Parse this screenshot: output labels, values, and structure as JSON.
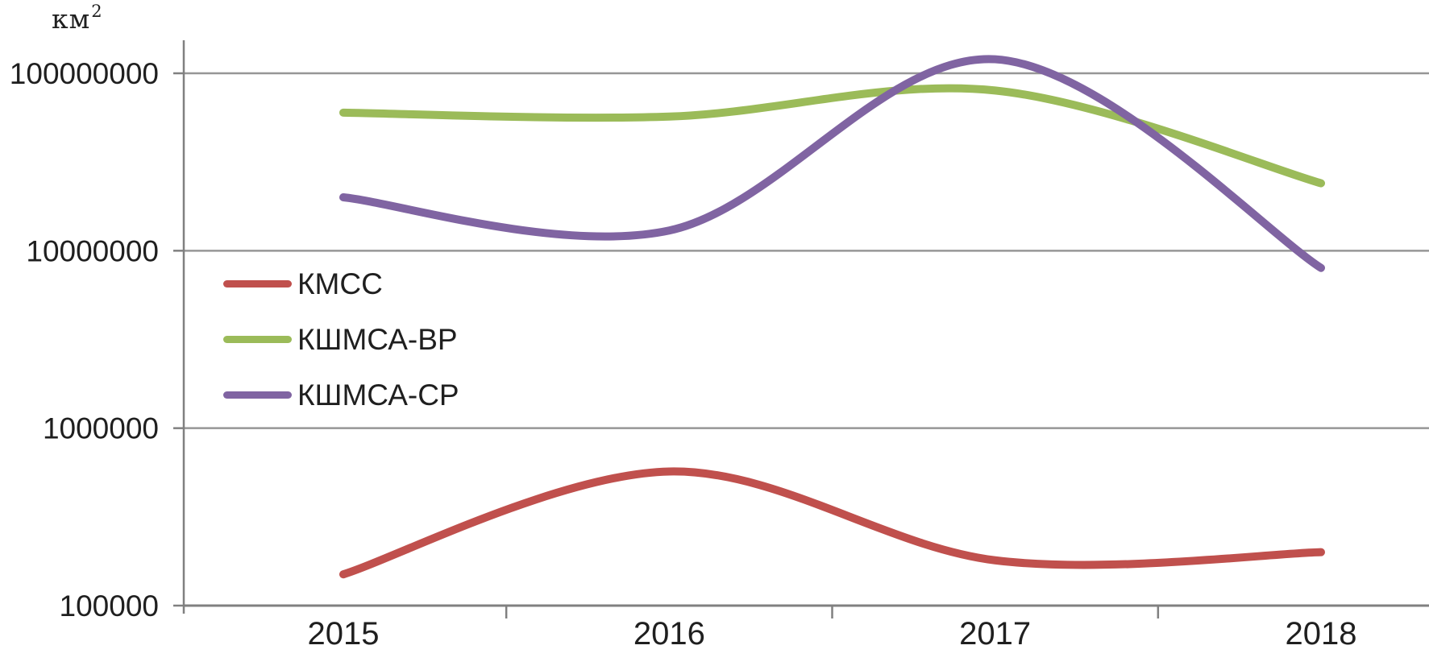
{
  "chart_data": {
    "type": "line",
    "title": "",
    "smoothed_lines": true,
    "grid": "horizontal",
    "legend_position": "inside-top-left",
    "y_axis": {
      "unit_base": "км",
      "unit_exponent": "2",
      "scale": "log10",
      "range": [
        100000,
        100000000
      ],
      "ticks": [
        {
          "label": "100000000",
          "value": 100000000
        },
        {
          "label": "10000000",
          "value": 10000000
        },
        {
          "label": "1000000",
          "value": 1000000
        },
        {
          "label": "100000",
          "value": 100000
        }
      ]
    },
    "x_axis": {
      "categories": [
        "2015",
        "2016",
        "2017",
        "2018"
      ]
    },
    "series": [
      {
        "name": "КМСС",
        "color": "#C0504D",
        "values": [
          150000,
          570000,
          180000,
          200000
        ]
      },
      {
        "name": "КШМСА-ВР",
        "color": "#9BBB59",
        "values": [
          60000000,
          57000000,
          80000000,
          24000000
        ]
      },
      {
        "name": "КШМСА-СР",
        "color": "#8064A2",
        "values": [
          20000000,
          13000000,
          120000000,
          8000000
        ]
      }
    ]
  },
  "colors": {
    "background": "#FFFFFF",
    "gridline": "#969696",
    "axis": "#808080",
    "text": "#1F1F1F"
  }
}
